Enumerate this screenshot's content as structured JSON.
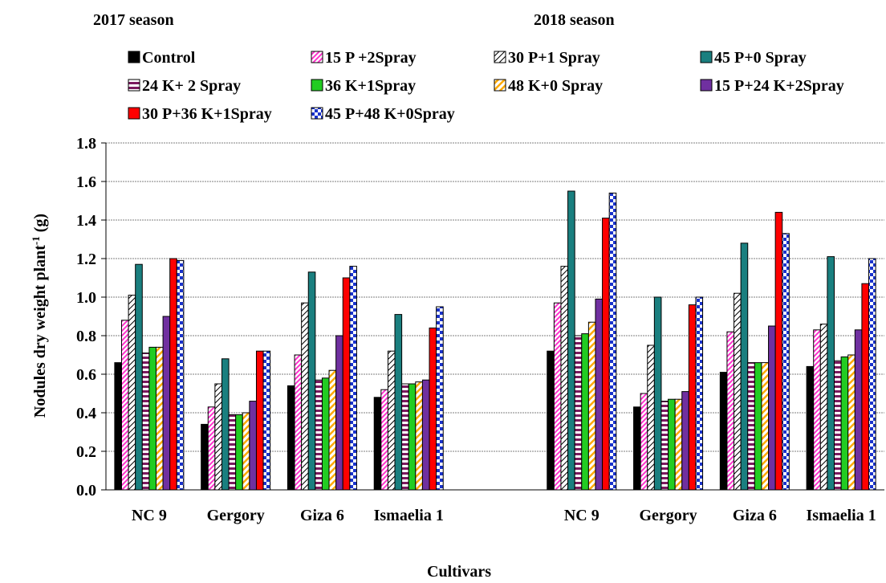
{
  "chart_data": {
    "type": "bar",
    "season_labels": [
      "2017 season",
      "2018 season"
    ],
    "categories": [
      "NC 9",
      "Gergory",
      "Giza 6",
      "Ismaelia 1"
    ],
    "ylabel_main": "Nodules dry weight plant",
    "ylabel_sup": "-1",
    "ylabel_unit": " (g)",
    "xlabel": "Cultivars",
    "ylim": [
      0,
      1.8
    ],
    "yticks": [
      "0.0",
      "0.2",
      "0.4",
      "0.6",
      "0.8",
      "1.0",
      "1.2",
      "1.4",
      "1.6",
      "1.8"
    ],
    "grid": true,
    "legend_position": "top",
    "series": [
      {
        "name": "Control",
        "color": "#000000",
        "pattern": "solid",
        "values_2017": [
          0.66,
          0.34,
          0.54,
          0.48
        ],
        "values_2018": [
          0.72,
          0.43,
          0.61,
          0.64
        ]
      },
      {
        "name": "15 P +2Spray",
        "color": "#ff33cc",
        "pattern": "diag-dense",
        "values_2017": [
          0.88,
          0.43,
          0.7,
          0.52
        ],
        "values_2018": [
          0.97,
          0.5,
          0.82,
          0.83
        ]
      },
      {
        "name": "30 P+1 Spray",
        "color": "#000000",
        "pattern": "diag-sparse",
        "values_2017": [
          1.01,
          0.55,
          0.97,
          0.72
        ],
        "values_2018": [
          1.16,
          0.75,
          1.02,
          0.86
        ]
      },
      {
        "name": "45 P+0 Spray",
        "color": "#1a7f7f",
        "pattern": "solid",
        "values_2017": [
          1.17,
          0.68,
          1.13,
          0.91
        ],
        "values_2018": [
          1.55,
          1.0,
          1.28,
          1.21
        ]
      },
      {
        "name": "24 K+ 2 Spray",
        "color": "#7a1a5e",
        "pattern": "horizontal",
        "values_2017": [
          0.71,
          0.39,
          0.57,
          0.55
        ],
        "values_2018": [
          0.8,
          0.46,
          0.66,
          0.67
        ]
      },
      {
        "name": "36 K+1Spray",
        "color": "#22cc22",
        "pattern": "solid",
        "values_2017": [
          0.74,
          0.39,
          0.58,
          0.55
        ],
        "values_2018": [
          0.81,
          0.47,
          0.66,
          0.69
        ]
      },
      {
        "name": "48 K+0 Spray",
        "color": "#ffaa00",
        "pattern": "diag-wide",
        "values_2017": [
          0.74,
          0.4,
          0.62,
          0.56
        ],
        "values_2018": [
          0.87,
          0.47,
          0.66,
          0.7
        ]
      },
      {
        "name": "15 P+24 K+2Spray",
        "color": "#7030a0",
        "pattern": "solid",
        "values_2017": [
          0.9,
          0.46,
          0.8,
          0.57
        ],
        "values_2018": [
          0.99,
          0.51,
          0.85,
          0.83
        ]
      },
      {
        "name": "30 P+36 K+1Spray",
        "color": "#ff0000",
        "pattern": "solid",
        "values_2017": [
          1.2,
          0.72,
          1.1,
          0.84
        ],
        "values_2018": [
          1.41,
          0.96,
          1.44,
          1.07
        ]
      },
      {
        "name": "45 P+48 K+0Spray",
        "color": "#1a33cc",
        "pattern": "checker",
        "values_2017": [
          1.19,
          0.72,
          1.16,
          0.95
        ],
        "values_2018": [
          1.54,
          1.0,
          1.33,
          1.2
        ]
      }
    ]
  }
}
